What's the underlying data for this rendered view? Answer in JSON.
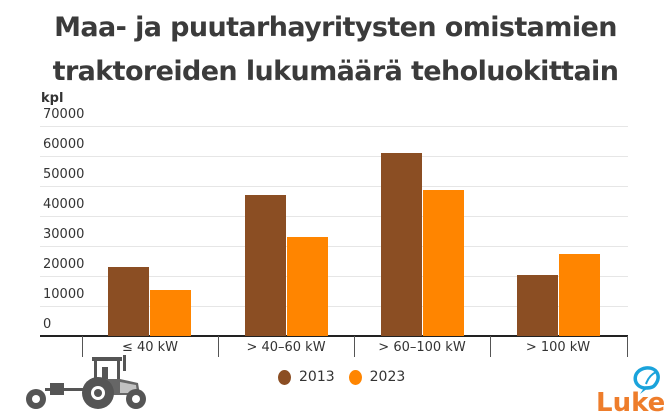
{
  "chart_data": {
    "type": "bar",
    "title": "Maa- ja puutarhayritysten omistamien traktoreiden lukumäärä teholuokittain",
    "title_lines": [
      "Maa- ja puutarhayritysten omistamien",
      "traktoreiden lukumäärä teholuokittain"
    ],
    "xlabel": "",
    "ylabel": "kpl",
    "ylim": [
      0,
      70000
    ],
    "yticks": [
      "70000",
      "60000",
      "50000",
      "40000",
      "30000",
      "20000",
      "10000",
      "0"
    ],
    "grid": true,
    "legend_position": "bottom",
    "categories": [
      "≤ 40 kW",
      "> 40–60 kW",
      "> 60–100 kW",
      "> 100 kW"
    ],
    "series": [
      {
        "name": "2013",
        "color": "#8B4E23",
        "values": [
          23000,
          47000,
          61000,
          20300
        ]
      },
      {
        "name": "2023",
        "color": "#FF8500",
        "values": [
          15300,
          33000,
          48700,
          27200
        ]
      }
    ]
  },
  "branding": {
    "logo_text": "Luke",
    "logo_color": "#EE7D2B",
    "leaf_color": "#1AA3DB"
  },
  "icons": {
    "tractor": "tractor-illustration",
    "logo_leaf": "speech-leaf-icon"
  }
}
